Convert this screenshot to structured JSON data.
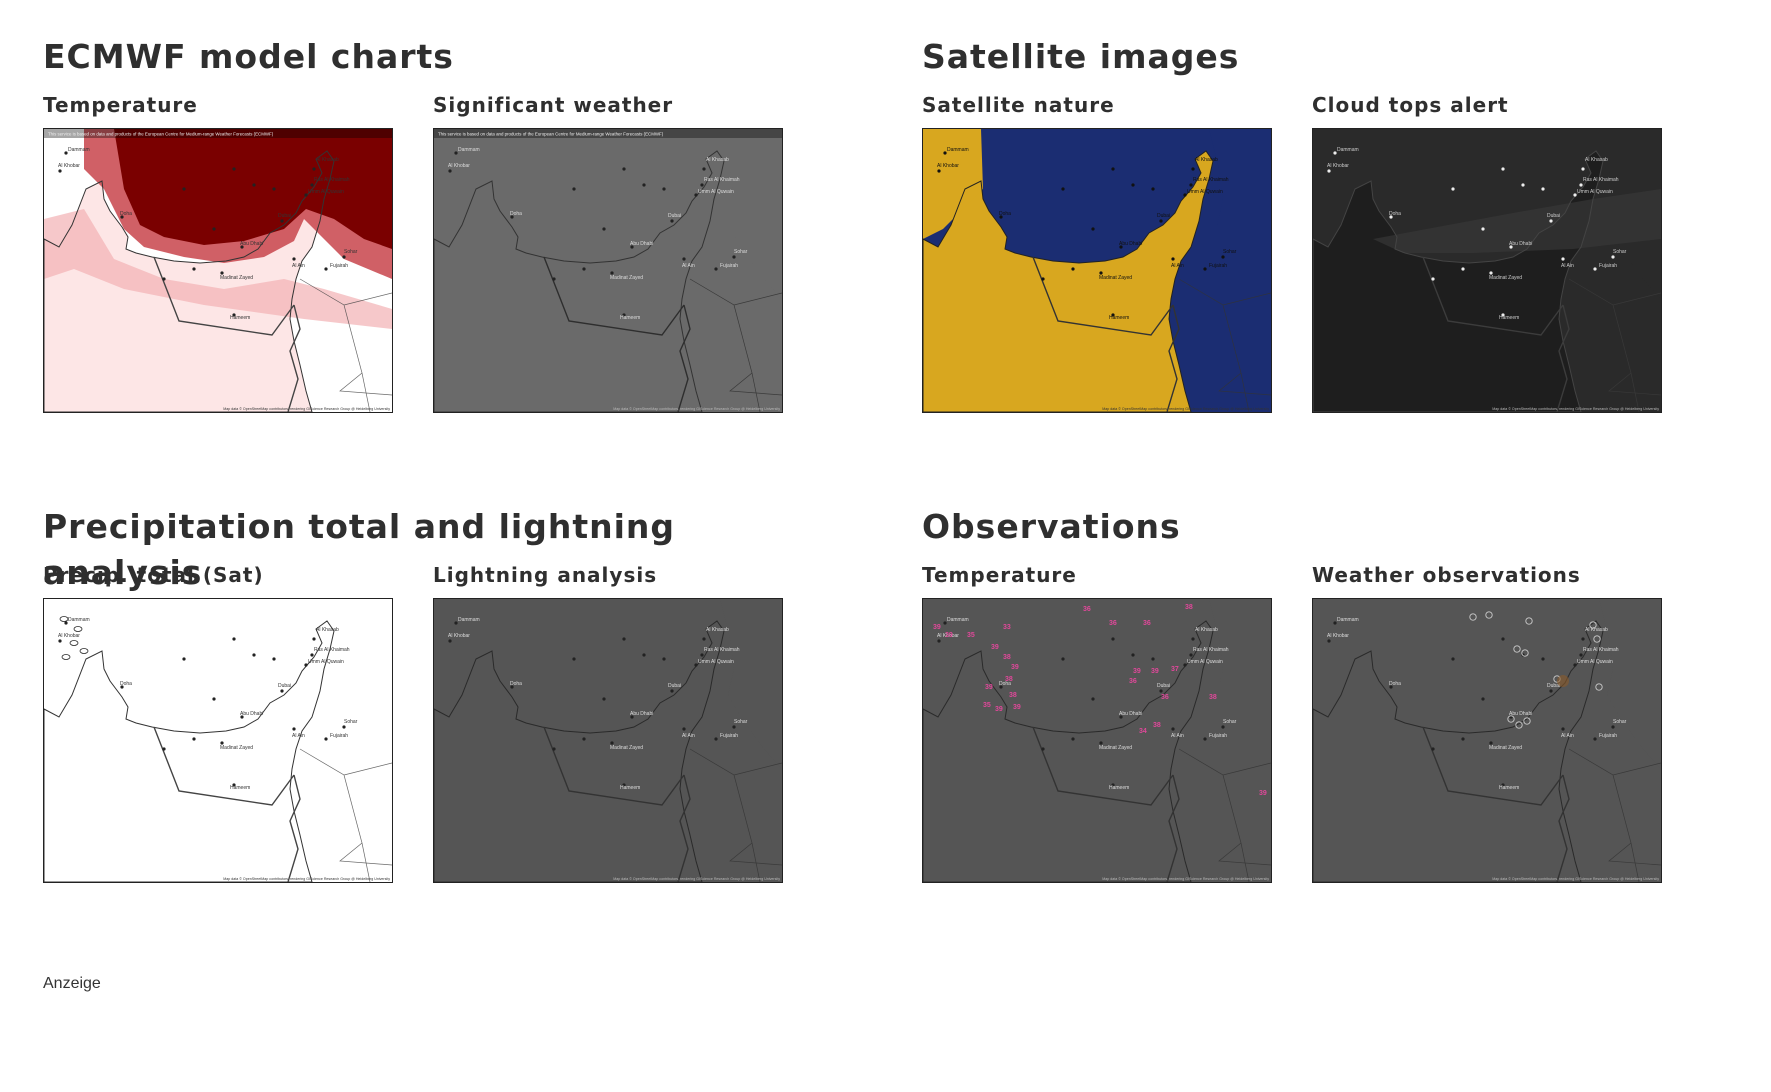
{
  "sections": [
    {
      "title": "ECMWF model charts",
      "cards": [
        {
          "label": "Temperature",
          "style": "temp",
          "banner": "This service is based on data and products of the European Centre for Medium-range Weather Forecasts (ECMWF)",
          "credit": "Map data © OpenStreetMap contributors, rendering GIScience Research Group @ Heidelberg University"
        },
        {
          "label": "Significant weather",
          "style": "sigwx",
          "banner": "This service is based on data and products of the European Centre for Medium-range Weather Forecasts (ECMWF)",
          "credit": "Map data © OpenStreetMap contributors, rendering GIScience Research Group @ Heidelberg University"
        }
      ]
    },
    {
      "title": "Satellite images",
      "cards": [
        {
          "label": "Satellite nature",
          "style": "satnat",
          "credit": "Map data © OpenStreetMap contributors, rendering GIScience Research Group @ Heidelberg University"
        },
        {
          "label": "Cloud tops alert",
          "style": "cloud",
          "credit": "Map data © OpenStreetMap contributors, rendering GIScience Research Group @ Heidelberg University"
        }
      ]
    },
    {
      "title": "Precipitation total and lightning analysis",
      "cards": [
        {
          "label": "Precip. total (Sat)",
          "style": "precip",
          "credit": "Map data © OpenStreetMap contributors, rendering GIScience Research Group @ Heidelberg University"
        },
        {
          "label": "Lightning analysis",
          "style": "lightning",
          "credit": "Map data © OpenStreetMap contributors, rendering GIScience Research Group @ Heidelberg University"
        }
      ]
    },
    {
      "title": "Observations",
      "cards": [
        {
          "label": "Temperature",
          "style": "obstemp",
          "credit": "Map data © OpenStreetMap contributors, rendering GIScience Research Group @ Heidelberg University",
          "values": [
            "39",
            "39",
            "35",
            "33",
            "36",
            "36",
            "36",
            "38",
            "39",
            "38",
            "39",
            "38",
            "39",
            "38",
            "39",
            "35",
            "39",
            "39",
            "39",
            "37",
            "36",
            "36",
            "34",
            "38",
            "38",
            "39"
          ]
        },
        {
          "label": "Weather observations",
          "style": "wxobs",
          "credit": "Map data © OpenStreetMap contributors, rendering GIScience Research Group @ Heidelberg University"
        }
      ]
    }
  ],
  "map_places": [
    "Dammam",
    "Al Khobar",
    "Doha",
    "Al Khasab",
    "Ras Al Khaimah",
    "Umm Al Quwain",
    "Dubai",
    "Abu Dhabi",
    "Al Ain",
    "Madinat Zayed",
    "Fujairah",
    "Sohar",
    "Hameem"
  ],
  "ad_label": "Anzeige",
  "colors": {
    "temp_dark": "#7a0000",
    "temp_mid": "#c8444b",
    "temp_light": "#fbe4e4",
    "sig_bg": "#6a6a6a",
    "sat_sea": "#1b2d72",
    "sat_land": "#d8a71f",
    "cloud_bg": "#1e1e1e",
    "dark_bg": "#555555",
    "obs_value": "#e0489a"
  }
}
